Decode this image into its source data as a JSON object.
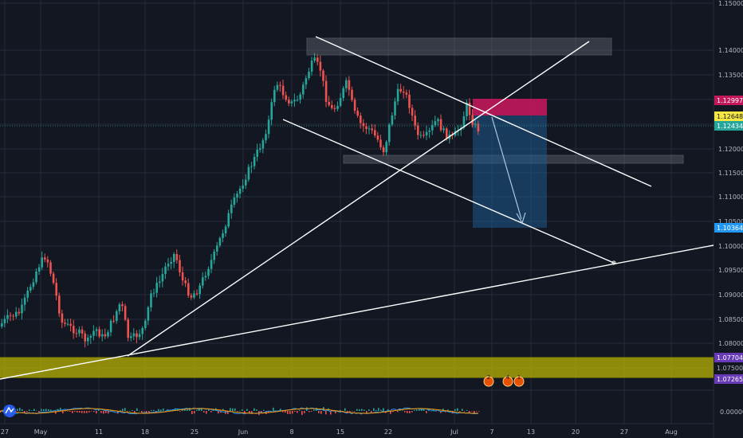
{
  "colors": {
    "background": "#131722",
    "grid": "#262b38",
    "up": "#26a69a",
    "down": "#ef5350",
    "trendline": "#ffffff",
    "support_zone": "#bcb800",
    "stop_box": "#c2185b",
    "target_box": "#1e5a8e"
  },
  "price_axis": {
    "ticks": [
      "1.15000",
      "1.14000",
      "1.13500",
      "1.13000",
      "1.12500",
      "1.12000",
      "1.11500",
      "1.11000",
      "1.10500",
      "1.10000",
      "1.09500",
      "1.09000",
      "1.08500",
      "1.08000",
      "1.07500"
    ],
    "indicator_tick": "0.00000"
  },
  "price_labels": [
    {
      "name": "stop-price-label",
      "value": "1.12997",
      "bg": "#c2185b",
      "fg": "#ffffff"
    },
    {
      "name": "entry-price-label",
      "value": "1.12648",
      "bg": "#f5e642",
      "fg": "#131722"
    },
    {
      "name": "last-price-label",
      "value": "1.12434",
      "bg": "#26a69a",
      "fg": "#ffffff"
    },
    {
      "name": "target-price-label",
      "value": "1.10364",
      "bg": "#2196f3",
      "fg": "#ffffff"
    },
    {
      "name": "zone-top-label",
      "value": "1.07704",
      "bg": "#673ab7",
      "fg": "#ffffff"
    },
    {
      "name": "zone-mid-label",
      "value": "1.07500",
      "bg": "#131722",
      "fg": "#b2b5be"
    },
    {
      "name": "zone-bottom-label",
      "value": "1.07265",
      "bg": "#673ab7",
      "fg": "#ffffff"
    }
  ],
  "time_axis": {
    "ticks": [
      "27",
      "May",
      "11",
      "18",
      "25",
      "Jun",
      "8",
      "15",
      "22",
      "Jul",
      "7",
      "13",
      "20",
      "27",
      "Aug"
    ]
  },
  "event_badges": [
    "2",
    "4",
    "1"
  ],
  "logo_icon": "tradingview-logo-icon"
}
